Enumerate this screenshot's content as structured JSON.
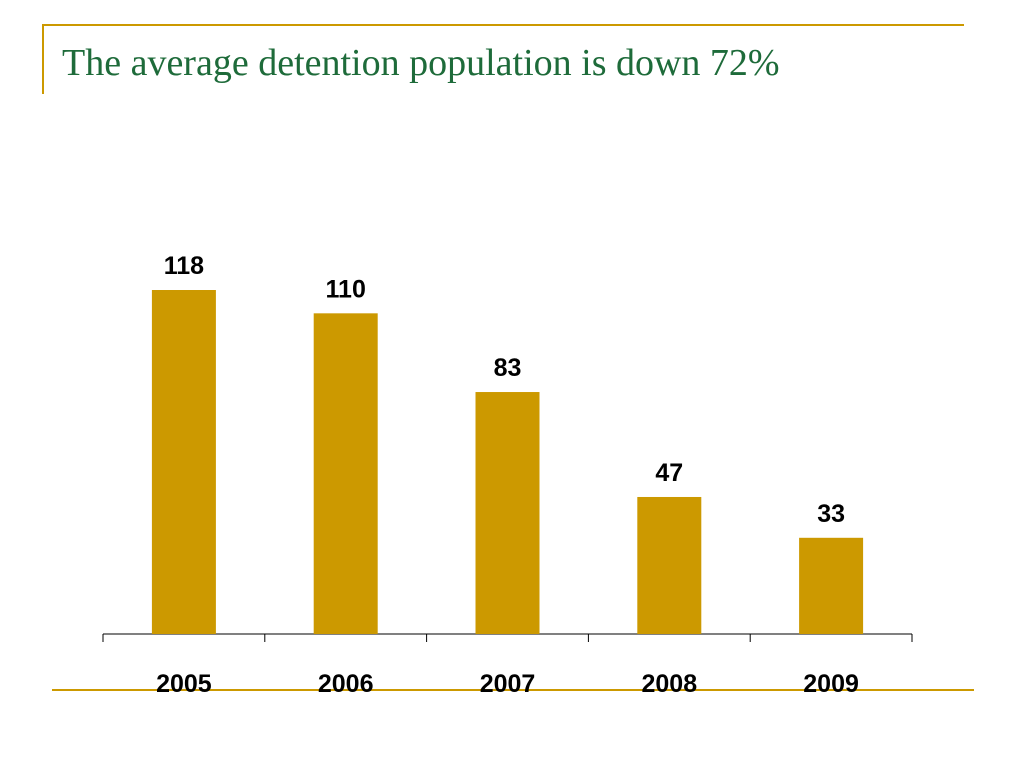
{
  "colors": {
    "accent": "#CC9900",
    "title": "#1E6B3A",
    "axis": "#000000"
  },
  "slide": {
    "title": "The average detention population is down 72%"
  },
  "chart_data": {
    "type": "bar",
    "title": "",
    "xlabel": "",
    "ylabel": "",
    "categories": [
      "2005",
      "2006",
      "2007",
      "2008",
      "2009"
    ],
    "values": [
      118,
      110,
      83,
      47,
      33
    ],
    "value_labels": [
      "118",
      "110",
      "83",
      "47",
      "33"
    ],
    "ylim": [
      0,
      118
    ],
    "grid": false,
    "legend": "none",
    "bar_color": "#CC9900"
  }
}
